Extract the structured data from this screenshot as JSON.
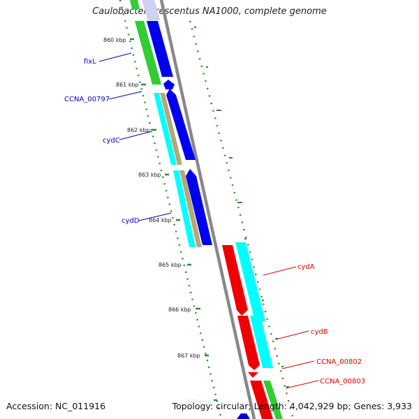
{
  "title": "Caulobacter crescentus NA1000, complete genome",
  "footer": {
    "accession": "Accession: NC_011916",
    "summary": "Topology: circular; Length: 4,042,929 bp; Genes: 3,933"
  },
  "colors": {
    "backbone": "#888888",
    "tick": "#2e8b2e",
    "label_dark": "#222222",
    "forward_gene_label": "#0000cc",
    "reverse_gene_label": "#dd0000",
    "blue": "#0000ee",
    "green": "#33cc33",
    "cyan": "#00ffff",
    "tan": "#b5a876",
    "red": "#ee0000",
    "ghost": "#cfd0f5"
  },
  "ticks": [
    "860 kbp",
    "861 kbp",
    "862 kbp",
    "863 kbp",
    "864 kbp",
    "865 kbp",
    "866 kbp",
    "867 kbp",
    "868 kbp"
  ],
  "forward_gene_labels": [
    "fixL",
    "CCNA_00797",
    "cydC",
    "cydD"
  ],
  "reverse_gene_labels": [
    "cydA",
    "cydB",
    "CCNA_00802",
    "CCNA_00803"
  ]
}
